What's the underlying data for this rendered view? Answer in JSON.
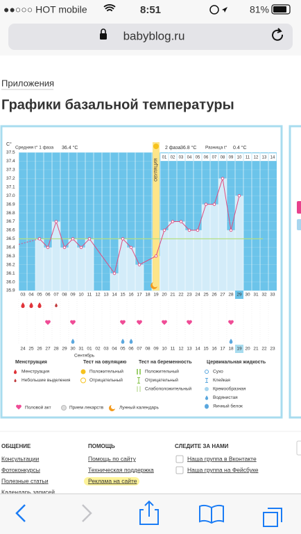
{
  "status_bar": {
    "carrier": "●●○○○ HOT mobile",
    "time": "8:51",
    "battery": "81%"
  },
  "url": "babyblog.ru",
  "breadcrumb": "Приложения",
  "title": "Графики базальной температуры",
  "chart": {
    "unit": "С°",
    "phase1_label": "Средняя t° 1 фаза",
    "phase1_value": "36.4 °C",
    "phase2_label": "2 фаза",
    "phase2_value": "36.8 °C",
    "diff_label": "Разница t°",
    "diff_value": "0.4 °C",
    "ovulation_label": "ОВУЛЯЦИЯ",
    "ovulation_day": 19,
    "today": 29,
    "month": "Сентябрь",
    "ylim": [
      35.9,
      37.5
    ],
    "yticks": [
      35.9,
      {
        "value": 36,
        "label": "36.0"
      },
      36.1,
      36.2,
      36.3,
      36.4,
      36.5,
      36.6,
      36.7,
      36.8,
      36.9,
      {
        "value": 37,
        "label": "37.0"
      },
      37.1,
      37.2,
      37.3,
      37.4,
      37.5
    ],
    "coverline": 36.5,
    "days": [
      "03",
      "04",
      "05",
      "06",
      "07",
      "08",
      "09",
      "10",
      "11",
      "12",
      "13",
      "14",
      "15",
      "16",
      "17",
      "18",
      "19",
      "20",
      "21",
      "22",
      "23",
      "24",
      "25",
      "26",
      "27",
      "28",
      "29",
      "30",
      "31",
      "32",
      "33"
    ],
    "temps": [
      null,
      null,
      36.5,
      36.4,
      36.7,
      36.4,
      36.5,
      36.4,
      36.5,
      null,
      null,
      36.1,
      36.5,
      36.4,
      36.2,
      null,
      36.3,
      36.6,
      36.7,
      36.7,
      36.6,
      36.6,
      36.9,
      36.9,
      37.2,
      36.6,
      37.0,
      null,
      null,
      null,
      null
    ],
    "phase2_days": [
      "01",
      "02",
      "03",
      "04",
      "05",
      "06",
      "07",
      "08",
      "09",
      "10",
      "11",
      "12",
      "13",
      "14"
    ],
    "dates": [
      "24",
      "25",
      "26",
      "27",
      "28",
      "29",
      "30",
      "31",
      "01",
      "02",
      "03",
      "04",
      "05",
      "06",
      "07",
      "08",
      "09",
      "10",
      "11",
      "12",
      "13",
      "14",
      "15",
      "16",
      "17",
      "18",
      "19",
      "20",
      "21",
      "22",
      "23"
    ],
    "menstruation_days": [
      3,
      4,
      5
    ],
    "spotting_days": [
      7
    ],
    "intercourse_days": [
      6,
      9,
      15,
      17,
      20,
      23,
      28
    ],
    "fluid_days": [
      9,
      15,
      16,
      28
    ]
  },
  "legend": {
    "groups": [
      {
        "title": "Менструация",
        "items": [
          "Менструация",
          "Небольшие выделения"
        ]
      },
      {
        "title": "Тест на овуляцию",
        "items": [
          "Положительный",
          "Отрицательный"
        ]
      },
      {
        "title": "Тест на беременность",
        "items": [
          "Положительный",
          "Отрицательный",
          "Слабоположительный"
        ]
      },
      {
        "title": "Цервикальная жидкость",
        "items": [
          "Сухо",
          "Клейкая",
          "Кремообразная",
          "Водянистая",
          "Яичный белок"
        ]
      }
    ],
    "extra": [
      "Половой акт",
      "Прием лекарств",
      "Лунный календарь"
    ]
  },
  "footer": {
    "columns": [
      {
        "title": "ОБЩЕНИЕ",
        "links": [
          "Консультации",
          "Фотоконкурсы",
          "Полезные статьи",
          "Календарь записей"
        ]
      },
      {
        "title": "ПОМОЩЬ",
        "links": [
          "Помощь по сайту",
          "Техническая поддержка",
          "Реклама на сайте"
        ]
      },
      {
        "title": "СЛЕДИТЕ ЗА НАМИ",
        "links": [
          "Наша группа в Вконтакте",
          "Наша группа на Фейсбуке"
        ]
      }
    ]
  }
}
